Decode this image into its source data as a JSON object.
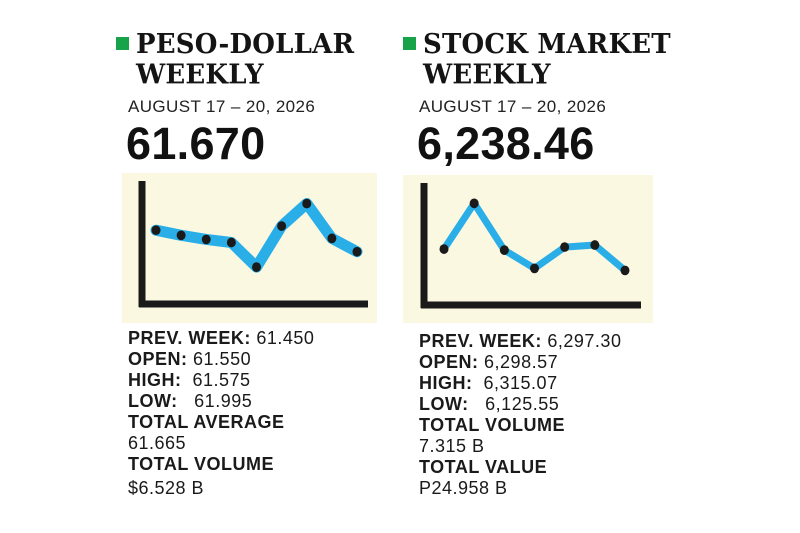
{
  "accent_color": "#16a34a",
  "chart_background": "#fbf8e2",
  "line_color": "#29aee8",
  "marker_color": "#1a1a1a",
  "panels": [
    {
      "title": "PESO-DOLLAR\nWEEKLY",
      "date": "AUGUST 17 – 20, 2026",
      "value": "61.670",
      "stats": {
        "prev_week_label": "PREV. WEEK:",
        "prev_week_value": "61.450",
        "open_label": "OPEN:",
        "open_value": "61.550",
        "high_label": "HIGH:",
        "high_value": "61.575",
        "low_label": "LOW:",
        "low_value": "61.995",
        "total1_label": "TOTAL AVERAGE",
        "total1_value": "61.665",
        "total2_label": "TOTAL VOLUME",
        "total2_value": "$6.528 B"
      }
    },
    {
      "title": "STOCK MARKET\nWEEKLY",
      "date": "AUGUST 17 – 20, 2026",
      "value": "6,238.46",
      "stats": {
        "prev_week_label": "PREV. WEEK:",
        "prev_week_value": "6,297.30",
        "open_label": "OPEN:",
        "open_value": "6,298.57",
        "high_label": "HIGH:",
        "high_value": "6,315.07",
        "low_label": "LOW:",
        "low_value": "6,125.55",
        "total1_label": "TOTAL VOLUME",
        "total1_value": "7.315 B",
        "total2_label": "TOTAL VALUE",
        "total2_value": "P24.958 B"
      }
    }
  ],
  "chart_data": [
    {
      "type": "line",
      "title": "",
      "xlabel": "",
      "ylabel": "",
      "x": [
        1,
        2,
        3,
        4,
        5,
        6,
        7,
        8,
        9
      ],
      "series": [
        {
          "values": [
            0.72,
            0.67,
            0.63,
            0.6,
            0.36,
            0.76,
            0.98,
            0.64,
            0.51
          ]
        }
      ],
      "ylim": [
        0,
        1.2
      ],
      "grid": false
    },
    {
      "type": "line",
      "title": "",
      "xlabel": "",
      "ylabel": "",
      "x": [
        1,
        2,
        3,
        4,
        5,
        6,
        7
      ],
      "series": [
        {
          "values": [
            0.55,
            1.0,
            0.54,
            0.36,
            0.57,
            0.59,
            0.34
          ]
        }
      ],
      "ylim": [
        0,
        1.2
      ],
      "grid": false
    }
  ]
}
